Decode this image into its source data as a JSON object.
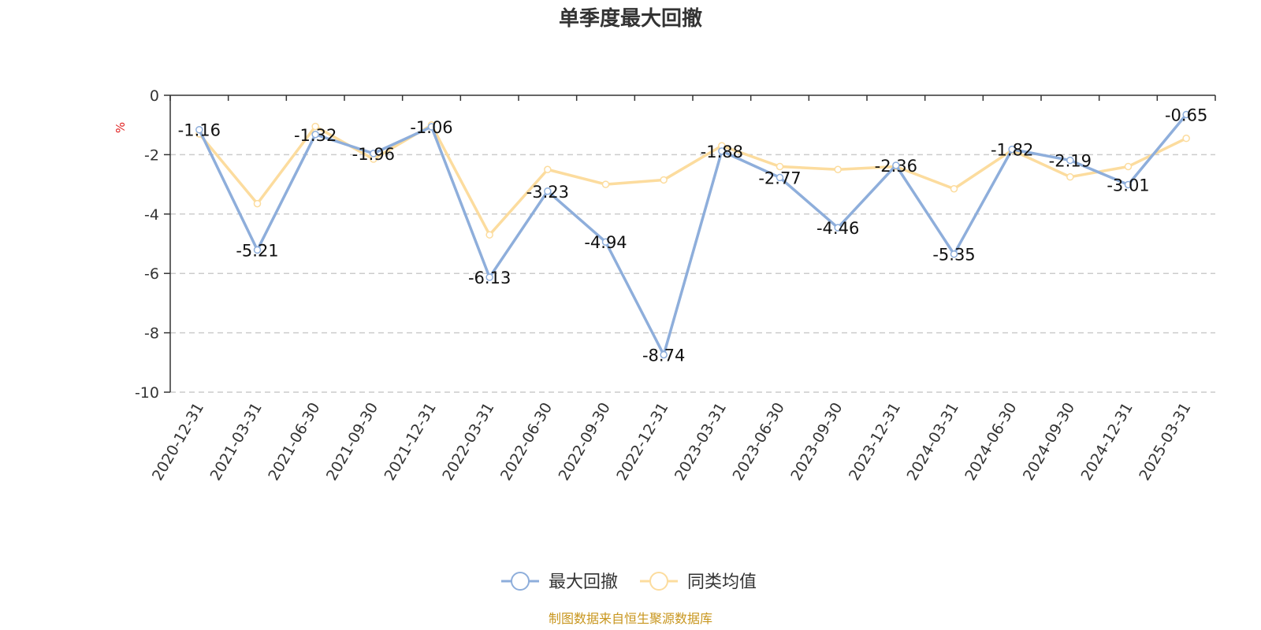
{
  "chart_data": {
    "type": "line",
    "title": "单季度最大回撤",
    "ylabel": "%",
    "ylim": [
      -10,
      0
    ],
    "yticks": [
      0,
      -2,
      -4,
      -6,
      -8,
      -10
    ],
    "grid": true,
    "legend_position": "bottom-center",
    "categories": [
      "2020-12-31",
      "2021-03-31",
      "2021-06-30",
      "2021-09-30",
      "2021-12-31",
      "2022-03-31",
      "2022-06-30",
      "2022-09-30",
      "2022-12-31",
      "2023-03-31",
      "2023-06-30",
      "2023-09-30",
      "2023-12-31",
      "2024-03-31",
      "2024-06-30",
      "2024-09-30",
      "2024-12-31",
      "2025-03-31"
    ],
    "series": [
      {
        "name": "最大回撤",
        "color": "#8eaedb",
        "show_labels": true,
        "values": [
          -1.16,
          -5.21,
          -1.32,
          -1.96,
          -1.06,
          -6.13,
          -3.23,
          -4.94,
          -8.74,
          -1.88,
          -2.77,
          -4.46,
          -2.36,
          -5.35,
          -1.82,
          -2.19,
          -3.01,
          -0.65
        ]
      },
      {
        "name": "同类均值",
        "color": "#fcdc9e",
        "show_labels": false,
        "values": [
          -1.3,
          -3.65,
          -1.05,
          -2.15,
          -1.0,
          -4.7,
          -2.5,
          -3.0,
          -2.85,
          -1.7,
          -2.4,
          -2.5,
          -2.4,
          -3.15,
          -1.85,
          -2.75,
          -2.4,
          -1.45
        ]
      }
    ]
  },
  "source_text": "制图数据来自恒生聚源数据库",
  "colors": {
    "axis": "#333333",
    "grid": "#cccccc",
    "unit": "#e02020",
    "source": "#c8961e"
  }
}
